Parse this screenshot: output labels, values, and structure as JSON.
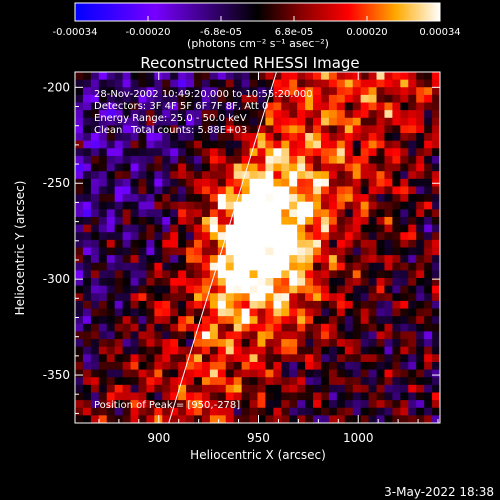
{
  "chart_data": {
    "type": "heatmap",
    "title": "Reconstructed RHESSI Image",
    "xlabel": "Heliocentric X (arcsec)",
    "ylabel": "Heliocentric Y (arcsec)",
    "xlim": [
      858,
      1041
    ],
    "ylim": [
      -375,
      -192
    ],
    "x_ticks": [
      900,
      950,
      1000
    ],
    "y_ticks": [
      -200,
      -250,
      -300,
      -350
    ],
    "colorbar": {
      "ticks": [
        "-0.00034",
        "-0.00020",
        "-6.8e-05",
        "6.8e-05",
        "0.00020",
        "0.00034"
      ],
      "range": [
        -0.00034,
        0.00034
      ],
      "units": "(photons cm⁻² s⁻¹ asec⁻²)",
      "colormap": [
        "#0000ff",
        "#7700ff",
        "#000000",
        "#880000",
        "#ff0000",
        "#ffaa00",
        "#ffffff"
      ]
    },
    "annotations": {
      "time_range": "28-Nov-2002 10:49:20.000 to 10:55:20.000",
      "detectors": "Detectors: 3F 4F 5F 6F 7F 8F, Att 0",
      "energy": "Energy Range: 25.0 - 50.0 keV",
      "method": "Clean",
      "counts": "Total counts: 5.88E+03",
      "peak": "Position of Peak = [950,-278]"
    },
    "peak": {
      "x": 950,
      "y": -278
    },
    "limb_line": {
      "x": [
        905,
        959
      ],
      "y": [
        -375,
        -192
      ]
    }
  },
  "timestamp": "3-May-2022 18:38"
}
